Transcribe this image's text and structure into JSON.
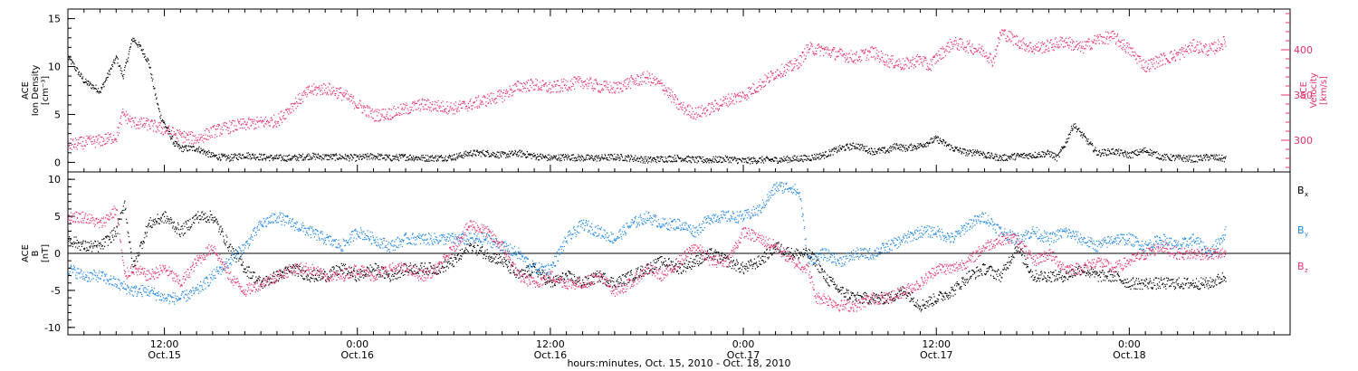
{
  "colors": {
    "black": "#000000",
    "pink": "#e8336a",
    "blue": "#1f86e6"
  },
  "time_axis": {
    "title": "hours:minutes, Oct. 15, 2010 - Oct. 18, 2010",
    "ticks": [
      {
        "hours": 12,
        "time": "12:00",
        "date": "Oct.15"
      },
      {
        "hours": 24,
        "time": "0:00",
        "date": "Oct.16"
      },
      {
        "hours": 36,
        "time": "12:00",
        "date": "Oct.16"
      },
      {
        "hours": 48,
        "time": "0:00",
        "date": "Oct.17"
      },
      {
        "hours": 60,
        "time": "12:00",
        "date": "Oct.17"
      },
      {
        "hours": 72,
        "time": "0:00",
        "date": "Oct.18"
      }
    ],
    "range_hours": [
      6,
      82
    ]
  },
  "chart_data": [
    {
      "type": "scatter",
      "id": "top-panel",
      "ylabel_left": [
        "ACE",
        "Ion Density",
        "[cm⁻³]"
      ],
      "ylabel_right": [
        "ACE",
        "Velocity",
        "[km/s]"
      ],
      "ylim_left": [
        -1,
        16
      ],
      "ylim_right": [
        265,
        445
      ],
      "yticks_left": [
        0,
        5,
        10,
        15
      ],
      "yticks_right": [
        300,
        350,
        400
      ],
      "series": [
        {
          "axis": "left",
          "color": "black",
          "x": [
            6,
            7,
            8,
            8.7,
            9,
            9.4,
            10,
            10.5,
            11,
            11.3,
            11.7,
            12,
            12.3,
            12.6,
            13,
            14,
            15,
            16,
            17,
            18,
            19,
            20,
            21,
            22,
            23,
            24,
            25,
            26,
            27,
            28,
            29,
            30,
            31,
            32,
            33,
            34,
            35,
            36,
            37,
            38,
            39,
            40,
            41,
            42,
            43,
            44,
            45,
            46,
            47,
            48,
            49,
            50,
            51,
            52,
            53,
            54,
            55,
            56,
            57,
            57.5,
            58,
            59,
            60,
            61,
            62,
            62.5,
            63,
            64,
            65,
            66,
            67,
            67.5,
            68,
            68.5,
            69,
            70,
            71,
            72,
            73,
            74,
            75,
            76,
            77,
            78
          ],
          "y": [
            11,
            8.5,
            7.5,
            10,
            11,
            9,
            13,
            12,
            10.5,
            8,
            5,
            4,
            3,
            2,
            1.5,
            1.5,
            0.7,
            0.5,
            0.8,
            0.6,
            0.5,
            0.5,
            0.7,
            0.6,
            0.6,
            0.5,
            0.7,
            0.5,
            0.6,
            0.5,
            0.5,
            0.6,
            1,
            1,
            0.8,
            1,
            0.7,
            0.5,
            0.6,
            0.5,
            0.5,
            0.6,
            0.5,
            0.3,
            0.4,
            0.5,
            0.3,
            0.3,
            0.4,
            0.2,
            0.3,
            0.3,
            0.4,
            0.5,
            0.8,
            1.5,
            1.8,
            1.2,
            1.3,
            1.8,
            1.5,
            1.8,
            2.5,
            1.5,
            1,
            1.2,
            0.8,
            0.5,
            0.7,
            0.8,
            1,
            0.5,
            2,
            4,
            3,
            1,
            1.2,
            0.8,
            1.3,
            0.6,
            0.5,
            0.4,
            0.6,
            0.4
          ]
        },
        {
          "axis": "right",
          "color": "pink",
          "x": [
            6,
            7,
            8,
            9,
            9.4,
            10,
            11,
            12,
            13,
            14,
            15,
            16,
            17,
            18,
            19,
            20,
            21,
            22,
            23,
            24,
            25,
            26,
            27,
            28,
            29,
            30,
            31,
            32,
            33,
            34,
            35,
            36,
            37,
            38,
            39,
            40,
            41,
            42,
            43,
            44,
            45,
            46,
            47,
            48,
            49,
            50,
            51,
            51.5,
            52,
            53,
            54,
            55,
            56,
            57,
            58,
            59,
            59.5,
            60,
            61,
            62,
            63,
            63.5,
            64,
            65,
            66,
            67,
            68,
            69,
            70,
            71,
            72,
            73,
            74,
            75,
            76,
            77,
            78
          ],
          "y": [
            295,
            298,
            300,
            305,
            330,
            320,
            318,
            312,
            305,
            302,
            310,
            315,
            318,
            320,
            322,
            340,
            355,
            358,
            352,
            340,
            328,
            330,
            335,
            340,
            338,
            336,
            340,
            345,
            350,
            360,
            362,
            358,
            362,
            365,
            360,
            358,
            365,
            370,
            360,
            338,
            330,
            336,
            345,
            350,
            362,
            375,
            382,
            388,
            402,
            400,
            395,
            392,
            398,
            388,
            384,
            390,
            382,
            392,
            408,
            404,
            398,
            388,
            420,
            410,
            402,
            405,
            410,
            402,
            412,
            415,
            400,
            382,
            390,
            395,
            405,
            400,
            410
          ]
        }
      ]
    },
    {
      "type": "scatter",
      "id": "bottom-panel",
      "ylabel_left": [
        "ACE",
        "B",
        "[nT]"
      ],
      "ylim": [
        -11,
        11
      ],
      "yticks": [
        -10,
        -5,
        0,
        5,
        10
      ],
      "zero_line": true,
      "series": [
        {
          "name": "Bx",
          "color": "black",
          "x": [
            6,
            7,
            8,
            9,
            9.5,
            10,
            11,
            12,
            13,
            14,
            15,
            16,
            17,
            18,
            19,
            20,
            21,
            22,
            23,
            24,
            25,
            26,
            27,
            28,
            29,
            30,
            31,
            32,
            33,
            34,
            35,
            36,
            37,
            38,
            39,
            40,
            41,
            42,
            43,
            44,
            45,
            46,
            47,
            48,
            49,
            50,
            51,
            52,
            52.5,
            53,
            54,
            55,
            56,
            57,
            58,
            59,
            60,
            61,
            62,
            63,
            64,
            65,
            66,
            67,
            68,
            69,
            70,
            71,
            72,
            73,
            74,
            75,
            76,
            77,
            78
          ],
          "y": [
            2,
            1,
            1,
            3,
            7,
            -2,
            4,
            5,
            3,
            5,
            5,
            1,
            -2,
            -4,
            -3,
            -2,
            -3,
            -3,
            -2,
            -3,
            -2,
            -3,
            -2,
            -2,
            -2,
            -1,
            1,
            0,
            -1,
            -3,
            -2,
            -4,
            -3,
            -4,
            -3,
            -4,
            -3,
            -2,
            -1,
            -2,
            -1,
            0,
            -1,
            -2,
            -1,
            1,
            0,
            0,
            -1,
            -3,
            -5,
            -6,
            -6,
            -6,
            -5,
            -7,
            -6,
            -5,
            -3,
            -2,
            -3,
            1,
            -3,
            -3,
            -3,
            -2,
            -3,
            -3,
            -4,
            -4,
            -4,
            -4,
            -4,
            -4,
            -3
          ]
        },
        {
          "name": "By",
          "color": "blue",
          "x": [
            6,
            7,
            8,
            9,
            10,
            11,
            12,
            13,
            14,
            15,
            16,
            17,
            18,
            19,
            20,
            21,
            22,
            23,
            24,
            25,
            26,
            27,
            28,
            29,
            30,
            31,
            32,
            33,
            34,
            35,
            36,
            37,
            38,
            39,
            40,
            41,
            42,
            43,
            44,
            45,
            46,
            47,
            48,
            49,
            50,
            51,
            51.5,
            52,
            53,
            54,
            55,
            56,
            57,
            58,
            59,
            60,
            61,
            62,
            63,
            64,
            65,
            66,
            67,
            68,
            69,
            70,
            71,
            72,
            73,
            74,
            75,
            76,
            77,
            78
          ],
          "y": [
            -2,
            -3,
            -3,
            -4,
            -5,
            -5,
            -6,
            -6,
            -5,
            -3,
            -1,
            1,
            4,
            5,
            4,
            3,
            2,
            1,
            3,
            2,
            1,
            2,
            2,
            2,
            2,
            2,
            2,
            1,
            0,
            -2,
            -2,
            2,
            4,
            3,
            2,
            4,
            5,
            4,
            4,
            3,
            5,
            5,
            5,
            6,
            9,
            9,
            8,
            -1,
            0,
            -1,
            0,
            0,
            1,
            2,
            3,
            3,
            2,
            4,
            5,
            3,
            2,
            3,
            2,
            3,
            2,
            1,
            2,
            2,
            1,
            2,
            1,
            2,
            0,
            3
          ]
        },
        {
          "name": "Bz",
          "color": "pink",
          "x": [
            6,
            7,
            8,
            9,
            9.5,
            10,
            11,
            12,
            13,
            14,
            15,
            16,
            17,
            18,
            19,
            20,
            21,
            22,
            23,
            24,
            25,
            26,
            27,
            28,
            29,
            30,
            31,
            32,
            33,
            34,
            35,
            36,
            37,
            38,
            39,
            40,
            41,
            42,
            43,
            44,
            45,
            46,
            47,
            48,
            49,
            50,
            51,
            52,
            52.5,
            53,
            54,
            55,
            56,
            57,
            58,
            59,
            60,
            61,
            62,
            63,
            64,
            65,
            66,
            67,
            68,
            69,
            70,
            71,
            72,
            73,
            74,
            75,
            76,
            77,
            78
          ],
          "y": [
            5,
            5,
            4,
            6,
            -3,
            -2,
            -3,
            -2,
            -4,
            -1,
            1,
            -3,
            -5,
            -4,
            -3,
            -2,
            -2,
            -3,
            -3,
            -2,
            -3,
            -2,
            -2,
            -3,
            -2,
            1,
            4,
            3,
            1,
            -3,
            -4,
            -3,
            -4,
            -4,
            -3,
            -5,
            -4,
            -2,
            -3,
            -1,
            1,
            -1,
            -1,
            3,
            2,
            1,
            -1,
            -2,
            -6,
            -6,
            -7,
            -7,
            -6,
            -6,
            -5,
            -4,
            -2,
            -2,
            -1,
            1,
            2,
            2,
            -1,
            0,
            -2,
            -2,
            -1,
            -2,
            -1,
            0,
            1,
            0,
            0,
            0,
            0
          ]
        }
      ],
      "legend": [
        {
          "label": "B",
          "sub": "x",
          "color": "black"
        },
        {
          "label": "B",
          "sub": "y",
          "color": "blue"
        },
        {
          "label": "B",
          "sub": "z",
          "color": "pink"
        }
      ]
    }
  ]
}
